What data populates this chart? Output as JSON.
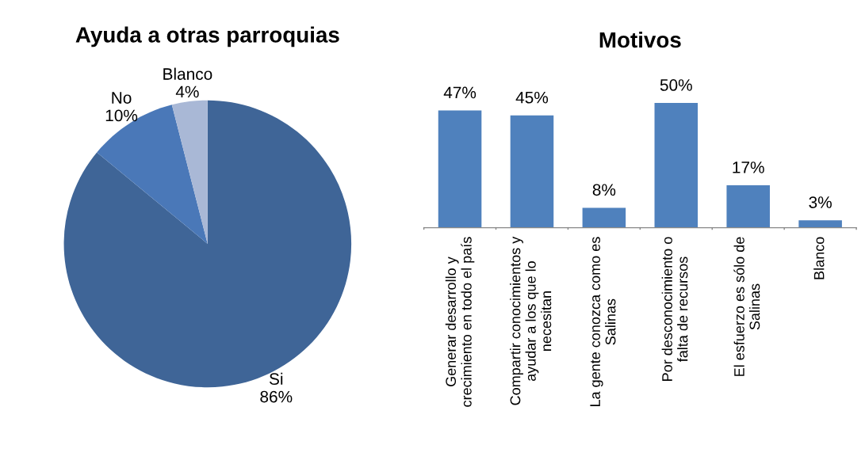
{
  "chart_data": [
    {
      "type": "pie",
      "title": "Ayuda a otras parroquias",
      "categories": [
        "Si",
        "No",
        "Blanco"
      ],
      "values": [
        86,
        10,
        4
      ],
      "value_labels": [
        "86%",
        "10%",
        "4%"
      ],
      "colors": [
        "#3f6597",
        "#4a78b8",
        "#a9b8d6"
      ]
    },
    {
      "type": "bar",
      "title": "Motivos",
      "categories": [
        "Generar desarrollo y\ncrecimiento en todo el país",
        "Compartir conocimientos y\nayudar a los que lo\nnecesitan",
        "La gente conozca como es\nSalinas",
        "Por desconocimiento o\nfalta de recursos",
        "El esfuerzo es sólo de\nSalinas",
        "Blanco"
      ],
      "values": [
        47,
        45,
        8,
        50,
        17,
        3
      ],
      "value_labels": [
        "47%",
        "45%",
        "8%",
        "50%",
        "17%",
        "3%"
      ],
      "color": "#4f81bd"
    }
  ]
}
